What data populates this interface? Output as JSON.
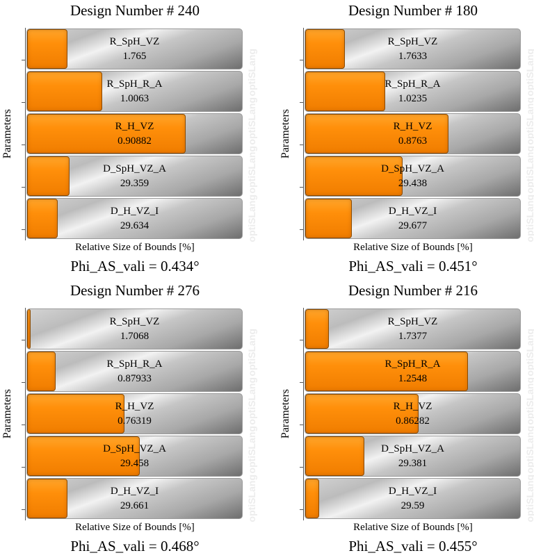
{
  "x_axis_label": "Relative Size of Bounds [%]",
  "y_axis_label": "Parameters",
  "watermark": "optiSLang",
  "colors": {
    "fill": "#ff8f0a",
    "bar": "#c0c0c0"
  },
  "chart_data": [
    {
      "type": "bar",
      "orientation": "horizontal",
      "title": "Design Number # 240",
      "footer": "Phi_AS_vali = 0.434°",
      "xlabel": "Relative Size of Bounds [%]",
      "ylabel": "Parameters",
      "xlim": [
        0,
        100
      ],
      "grid": false,
      "categories": [
        "R_SpH_VZ",
        "R_SpH_R_A",
        "R_H_VZ",
        "D_SpH_VZ_A",
        "D_H_VZ_I"
      ],
      "value_labels": [
        "1.765",
        "1.0063",
        "0.90882",
        "29.359",
        "29.634"
      ],
      "relative_sizes": [
        18.6,
        34.6,
        73.4,
        19.6,
        14.1
      ]
    },
    {
      "type": "bar",
      "orientation": "horizontal",
      "title": "Design Number # 180",
      "footer": "Phi_AS_vali = 0.451°",
      "xlabel": "Relative Size of Bounds [%]",
      "ylabel": "Parameters",
      "xlim": [
        0,
        100
      ],
      "grid": false,
      "categories": [
        "R_SpH_VZ",
        "R_SpH_R_A",
        "R_H_VZ",
        "D_SpH_VZ_A",
        "D_H_VZ_I"
      ],
      "value_labels": [
        "1.7633",
        "1.0235",
        "0.8763",
        "29.438",
        "29.677"
      ],
      "relative_sizes": [
        18.2,
        37.0,
        66.2,
        45.0,
        21.5
      ]
    },
    {
      "type": "bar",
      "orientation": "horizontal",
      "title": "Design Number # 276",
      "footer": "Phi_AS_vali = 0.468°",
      "xlabel": "Relative Size of Bounds [%]",
      "ylabel": "Parameters",
      "xlim": [
        0,
        100
      ],
      "grid": false,
      "categories": [
        "R_SpH_VZ",
        "R_SpH_R_A",
        "R_H_VZ",
        "D_SpH_VZ_A",
        "D_H_VZ_I"
      ],
      "value_labels": [
        "1.7068",
        "0.87933",
        "0.76319",
        "29.458",
        "29.661"
      ],
      "relative_sizes": [
        1.6,
        13.1,
        45.0,
        52.0,
        18.6
      ]
    },
    {
      "type": "bar",
      "orientation": "horizontal",
      "title": "Design Number # 216",
      "footer": "Phi_AS_vali = 0.455°",
      "xlabel": "Relative Size of Bounds [%]",
      "ylabel": "Parameters",
      "xlim": [
        0,
        100
      ],
      "grid": false,
      "categories": [
        "R_SpH_VZ",
        "R_SpH_R_A",
        "R_H_VZ",
        "D_SpH_VZ_A",
        "D_H_VZ_I"
      ],
      "value_labels": [
        "1.7377",
        "1.2548",
        "0.86282",
        "29.381",
        "29.59"
      ],
      "relative_sizes": [
        10.9,
        75.3,
        52.5,
        27.2,
        6.4
      ]
    }
  ]
}
